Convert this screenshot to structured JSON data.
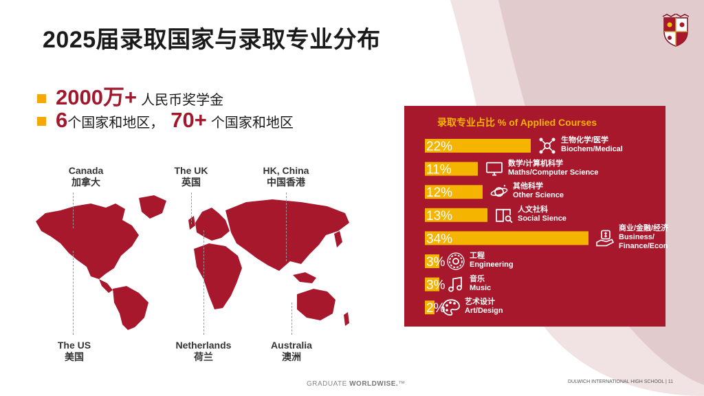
{
  "slide": {
    "title": "2025届录取国家与录取专业分布",
    "bullets": [
      {
        "big": "2000万+",
        "text": "人民币奖学金"
      },
      {
        "big_a": "6",
        "text_a": "个国家和地区，",
        "big_b": "70+",
        "text_b": "个国家和地区"
      }
    ],
    "map_labels": [
      {
        "en": "Canada",
        "zh": "加拿大"
      },
      {
        "en": "The UK",
        "zh": "英国"
      },
      {
        "en": "HK, China",
        "zh": "中国香港"
      },
      {
        "en": "The US",
        "zh": "美国"
      },
      {
        "en": "Netherlands",
        "zh": "荷兰"
      },
      {
        "en": "Australia",
        "zh": "澳洲"
      }
    ],
    "footer": {
      "left_a": "GRADUATE ",
      "left_b": "WORLDWISE.",
      "left_tm": "™",
      "right": "DULWICH INTERNATIONAL HIGH SCHOOL  |  11"
    }
  },
  "colors": {
    "brand_red": "#a8182c",
    "accent_gold": "#f5b400",
    "deco_pink": "#e9d5d7"
  },
  "chart_data": {
    "type": "bar",
    "orientation": "horizontal",
    "title": "录取专业占比  % of Applied Courses",
    "categories": [
      {
        "zh": "生物化学/医学",
        "en": "Biochem/Medical",
        "icon": "molecule-icon"
      },
      {
        "zh": "数学/计算机科学",
        "en": "Maths/Computer Science",
        "icon": "computer-icon"
      },
      {
        "zh": "其他科学",
        "en": "Other Science",
        "icon": "planet-icon"
      },
      {
        "zh": "人文社科",
        "en": "Social Sience",
        "icon": "book-search-icon"
      },
      {
        "zh": "商业/金融/经济",
        "en": "Business/Finance/Econ",
        "en_lines": [
          "Business/",
          "Finance/Econ"
        ],
        "icon": "money-hand-icon"
      },
      {
        "zh": "工程",
        "en": "Engineering",
        "icon": "gear-icon"
      },
      {
        "zh": "音乐",
        "en": "Music",
        "icon": "music-note-icon"
      },
      {
        "zh": "艺术设计",
        "en": "Art/Design",
        "icon": "palette-icon"
      }
    ],
    "values": [
      22,
      11,
      12,
      13,
      34,
      3,
      3,
      2
    ],
    "value_labels": [
      "22%",
      "11%",
      "12%",
      "13%",
      "34%",
      "3%",
      "3%",
      "2%"
    ],
    "unit": "%",
    "bar_color": "#f5b400"
  }
}
